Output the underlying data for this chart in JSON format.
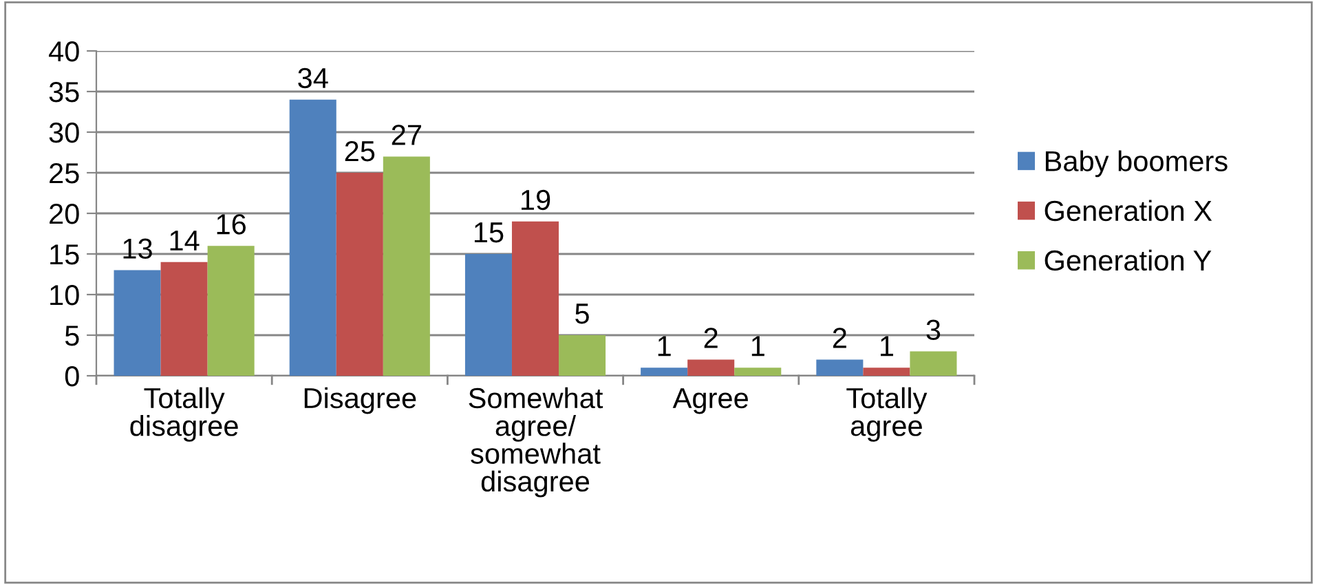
{
  "chart_data": {
    "type": "bar",
    "categories": [
      "Totally\ndisagree",
      "Disagree",
      "Somewhat\nagree/\nsomewhat\ndisagree",
      "Agree",
      "Totally\nagree"
    ],
    "series": [
      {
        "name": "Baby boomers",
        "color": "#4f81bd",
        "values": [
          13,
          34,
          15,
          1,
          2
        ]
      },
      {
        "name": "Generation X",
        "color": "#c0504d",
        "values": [
          14,
          25,
          19,
          2,
          1
        ]
      },
      {
        "name": "Generation Y",
        "color": "#9bbb59",
        "values": [
          16,
          27,
          5,
          1,
          3
        ]
      }
    ],
    "ylim": [
      0,
      40
    ],
    "yticks": [
      0,
      5,
      10,
      15,
      20,
      25,
      30,
      35,
      40
    ],
    "grid": "y",
    "legend": "right",
    "data_labels": true
  }
}
